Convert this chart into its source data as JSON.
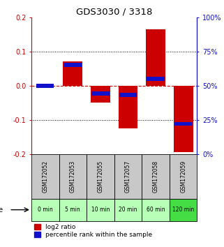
{
  "title": "GDS3030 / 3318",
  "samples": [
    "GSM172052",
    "GSM172053",
    "GSM172055",
    "GSM172057",
    "GSM172058",
    "GSM172059"
  ],
  "time_labels": [
    "0 min",
    "5 min",
    "10 min",
    "20 min",
    "60 min",
    "120 min"
  ],
  "log2_ratio": [
    0.0,
    0.07,
    -0.05,
    -0.125,
    0.165,
    -0.195
  ],
  "percentile_rank": [
    50,
    65,
    44,
    43,
    55,
    22
  ],
  "ylim": [
    -0.2,
    0.2
  ],
  "yticks_left": [
    -0.2,
    -0.1,
    0.0,
    0.1,
    0.2
  ],
  "yticks_right": [
    0,
    25,
    50,
    75,
    100
  ],
  "bar_width": 0.7,
  "red_color": "#cc0000",
  "blue_color": "#1111cc",
  "zero_line_color": "#cc0000",
  "grid_color": "#000000",
  "title_color": "#000000",
  "left_axis_color": "#cc0000",
  "right_axis_color": "#1111cc",
  "sample_bg_color": "#c8c8c8",
  "time_bg_light": "#b8ffb8",
  "time_bg_dark": "#44dd44",
  "legend_red_label": "log2 ratio",
  "legend_blue_label": "percentile rank within the sample",
  "blue_bar_height": 0.012
}
